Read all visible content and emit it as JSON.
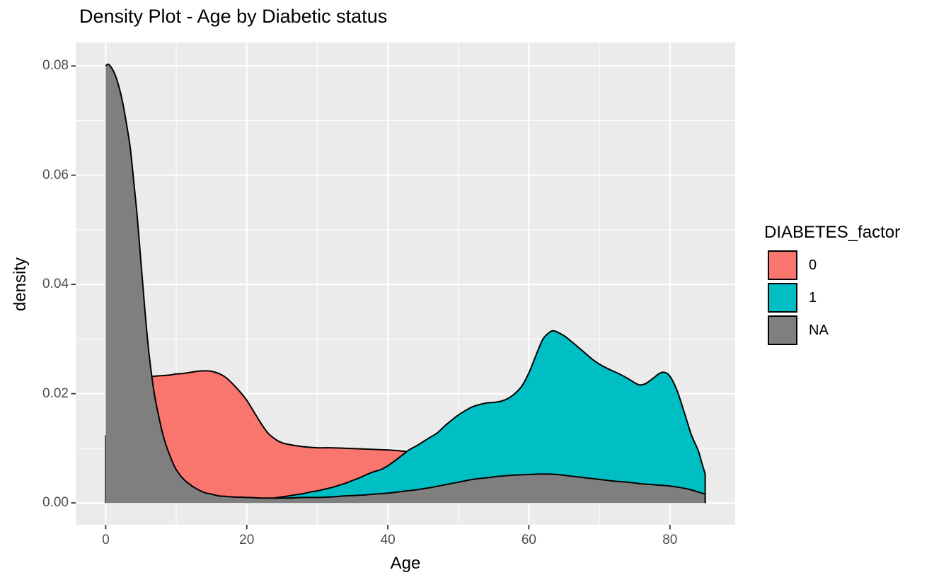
{
  "title": "Density Plot - Age by Diabetic status",
  "colors": {
    "background": "#FFFFFF",
    "panel": "#EBEBEB",
    "grid": "#FFFFFF",
    "outline": "#000000",
    "tick_mark": "#333333",
    "tick_label": "#4D4D4D",
    "axis_title": "#000000",
    "diabetes_0": "#F8766D",
    "diabetes_1": "#00BFC4",
    "diabetes_na": "#7F7F7F"
  },
  "axes": {
    "x": {
      "title": "Age",
      "ticks": [
        "0",
        "20",
        "40",
        "60",
        "80"
      ],
      "tick_values": [
        0,
        20,
        40,
        60,
        80
      ],
      "minor_values": [
        10,
        30,
        50,
        70
      ],
      "range": [
        -4.25,
        89.25
      ]
    },
    "y": {
      "title": "density",
      "ticks": [
        "0.00",
        "0.02",
        "0.04",
        "0.06",
        "0.08"
      ],
      "tick_values": [
        0,
        0.02,
        0.04,
        0.06,
        0.08
      ],
      "minor_values": [
        0.01,
        0.03,
        0.05,
        0.07
      ],
      "range": [
        -0.004,
        0.0843
      ]
    }
  },
  "legend": {
    "title": "DIABETES_factor",
    "entries": [
      {
        "label": "0",
        "color": "#F8766D"
      },
      {
        "label": "1",
        "color": "#00BFC4"
      },
      {
        "label": "NA",
        "color": "#7F7F7F"
      }
    ]
  },
  "chart_data": {
    "type": "area",
    "subtype": "overlapping-density",
    "title": "Density Plot - Age by Diabetic status",
    "xlabel": "Age",
    "ylabel": "density",
    "xlim": [
      0,
      85
    ],
    "ylim": [
      0,
      0.0803
    ],
    "grid": true,
    "legend_position": "right",
    "series": [
      {
        "name": "0",
        "color": "#F8766D",
        "edge_left": true,
        "edge_right": true,
        "points": [
          [
            0,
            0.0123
          ],
          [
            1,
            0.013
          ],
          [
            2,
            0.014
          ],
          [
            3,
            0.0156
          ],
          [
            4,
            0.018
          ],
          [
            5,
            0.021
          ],
          [
            6,
            0.0229
          ],
          [
            7,
            0.0232
          ],
          [
            8,
            0.0233
          ],
          [
            9,
            0.0234
          ],
          [
            10,
            0.0236
          ],
          [
            11,
            0.0237
          ],
          [
            12,
            0.0239
          ],
          [
            13,
            0.0241
          ],
          [
            14,
            0.0242
          ],
          [
            15,
            0.0241
          ],
          [
            16,
            0.0237
          ],
          [
            17,
            0.023
          ],
          [
            18,
            0.0218
          ],
          [
            19,
            0.0204
          ],
          [
            20,
            0.0188
          ],
          [
            21,
            0.0167
          ],
          [
            22,
            0.0146
          ],
          [
            23,
            0.0128
          ],
          [
            24,
            0.0117
          ],
          [
            25,
            0.011
          ],
          [
            26,
            0.0107
          ],
          [
            28,
            0.0103
          ],
          [
            30,
            0.0101
          ],
          [
            32,
            0.0101
          ],
          [
            34,
            0.01
          ],
          [
            36,
            0.0099
          ],
          [
            38,
            0.0098
          ],
          [
            40,
            0.0097
          ],
          [
            42,
            0.0095
          ],
          [
            44,
            0.0091
          ],
          [
            46,
            0.0086
          ],
          [
            48,
            0.0079
          ],
          [
            50,
            0.0072
          ],
          [
            53,
            0.0062
          ],
          [
            56,
            0.0052
          ],
          [
            60,
            0.0042
          ],
          [
            64,
            0.0033
          ],
          [
            68,
            0.0026
          ],
          [
            72,
            0.002
          ],
          [
            76,
            0.0015
          ],
          [
            80,
            0.0011
          ],
          [
            85,
            0.0007
          ]
        ]
      },
      {
        "name": "1",
        "color": "#00BFC4",
        "edge_left": false,
        "edge_right": true,
        "points": [
          [
            20,
            0.0001
          ],
          [
            21,
            0.0002
          ],
          [
            22,
            0.0004
          ],
          [
            23,
            0.0006
          ],
          [
            24,
            0.0009
          ],
          [
            25,
            0.0011
          ],
          [
            26,
            0.0013
          ],
          [
            27,
            0.0015
          ],
          [
            28,
            0.0017
          ],
          [
            29,
            0.002
          ],
          [
            30,
            0.0022
          ],
          [
            31,
            0.0025
          ],
          [
            32,
            0.0028
          ],
          [
            33,
            0.0032
          ],
          [
            34,
            0.0036
          ],
          [
            35,
            0.0041
          ],
          [
            36,
            0.0046
          ],
          [
            37,
            0.0052
          ],
          [
            38,
            0.0057
          ],
          [
            39,
            0.0061
          ],
          [
            40,
            0.0068
          ],
          [
            41,
            0.0077
          ],
          [
            42,
            0.0087
          ],
          [
            43,
            0.0097
          ],
          [
            44,
            0.0104
          ],
          [
            45,
            0.0112
          ],
          [
            46,
            0.012
          ],
          [
            47,
            0.0128
          ],
          [
            48,
            0.014
          ],
          [
            49,
            0.0151
          ],
          [
            50,
            0.0161
          ],
          [
            51,
            0.0169
          ],
          [
            52,
            0.0176
          ],
          [
            53,
            0.018
          ],
          [
            54,
            0.0183
          ],
          [
            55,
            0.0184
          ],
          [
            56,
            0.0186
          ],
          [
            57,
            0.0191
          ],
          [
            58,
            0.02
          ],
          [
            59,
            0.0214
          ],
          [
            60,
            0.0238
          ],
          [
            61,
            0.027
          ],
          [
            62,
            0.03
          ],
          [
            63,
            0.0313
          ],
          [
            63.5,
            0.0315
          ],
          [
            64,
            0.0313
          ],
          [
            65,
            0.0306
          ],
          [
            66,
            0.0296
          ],
          [
            67,
            0.0285
          ],
          [
            68,
            0.0274
          ],
          [
            69,
            0.0263
          ],
          [
            70,
            0.0254
          ],
          [
            71,
            0.0247
          ],
          [
            72,
            0.0241
          ],
          [
            73,
            0.0235
          ],
          [
            74,
            0.0228
          ],
          [
            75,
            0.022
          ],
          [
            75.7,
            0.0216
          ],
          [
            76.5,
            0.0218
          ],
          [
            77.5,
            0.0227
          ],
          [
            78.5,
            0.0237
          ],
          [
            79.2,
            0.0239
          ],
          [
            80,
            0.0232
          ],
          [
            81,
            0.0206
          ],
          [
            82,
            0.0167
          ],
          [
            83,
            0.0126
          ],
          [
            84,
            0.0096
          ],
          [
            84.5,
            0.0074
          ],
          [
            85,
            0.0053
          ]
        ]
      },
      {
        "name": "NA",
        "color": "#7F7F7F",
        "edge_left": false,
        "edge_right": true,
        "points": [
          [
            0,
            0.08
          ],
          [
            0.4,
            0.0803
          ],
          [
            1,
            0.0793
          ],
          [
            1.5,
            0.0778
          ],
          [
            2,
            0.0756
          ],
          [
            2.5,
            0.0727
          ],
          [
            3,
            0.069
          ],
          [
            3.5,
            0.0648
          ],
          [
            4,
            0.0586
          ],
          [
            4.5,
            0.052
          ],
          [
            5,
            0.0441
          ],
          [
            5.5,
            0.0362
          ],
          [
            6,
            0.0291
          ],
          [
            6.5,
            0.0235
          ],
          [
            7,
            0.0192
          ],
          [
            7.5,
            0.016
          ],
          [
            8,
            0.0131
          ],
          [
            8.5,
            0.0108
          ],
          [
            9,
            0.009
          ],
          [
            9.5,
            0.0074
          ],
          [
            10,
            0.0061
          ],
          [
            11,
            0.0044
          ],
          [
            12,
            0.0033
          ],
          [
            13,
            0.0025
          ],
          [
            14,
            0.0019
          ],
          [
            15,
            0.0016
          ],
          [
            16,
            0.0013
          ],
          [
            17,
            0.0012
          ],
          [
            18,
            0.0011
          ],
          [
            20,
            0.001
          ],
          [
            22,
            0.0009
          ],
          [
            24,
            0.0009
          ],
          [
            26,
            0.0009
          ],
          [
            28,
            0.001
          ],
          [
            30,
            0.001
          ],
          [
            32,
            0.0011
          ],
          [
            34,
            0.0013
          ],
          [
            36,
            0.0014
          ],
          [
            38,
            0.0016
          ],
          [
            40,
            0.0018
          ],
          [
            42,
            0.0021
          ],
          [
            44,
            0.0024
          ],
          [
            46,
            0.0028
          ],
          [
            48,
            0.0033
          ],
          [
            50,
            0.0038
          ],
          [
            52,
            0.0043
          ],
          [
            54,
            0.0046
          ],
          [
            56,
            0.0049
          ],
          [
            58,
            0.0051
          ],
          [
            60,
            0.0052
          ],
          [
            62,
            0.0053
          ],
          [
            64,
            0.0052
          ],
          [
            66,
            0.0049
          ],
          [
            68,
            0.0046
          ],
          [
            70,
            0.0043
          ],
          [
            72,
            0.004
          ],
          [
            74,
            0.0038
          ],
          [
            76,
            0.0035
          ],
          [
            78,
            0.0033
          ],
          [
            80,
            0.0031
          ],
          [
            81,
            0.0029
          ],
          [
            82,
            0.0027
          ],
          [
            83,
            0.0024
          ],
          [
            84,
            0.002
          ],
          [
            85,
            0.0016
          ]
        ]
      }
    ]
  }
}
